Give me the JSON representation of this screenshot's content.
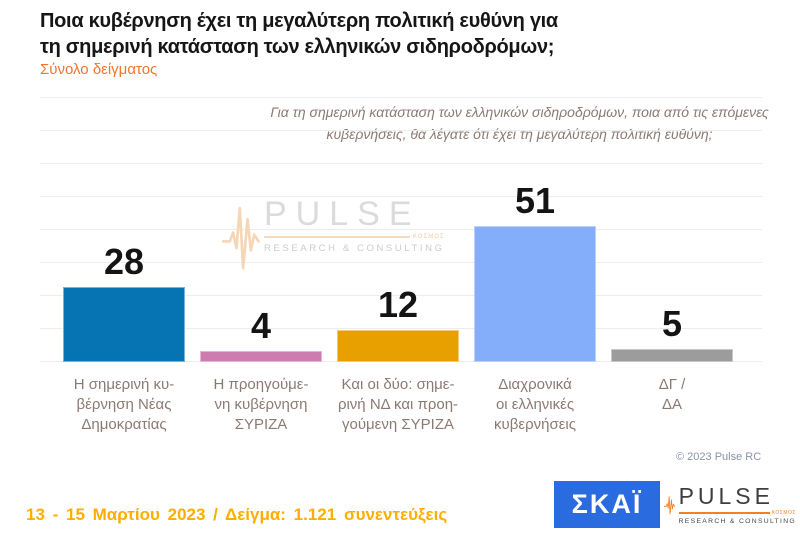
{
  "header": {
    "title": "Ποια κυβέρνηση έχει τη μεγαλύτερη πολιτική ευθύνη για\nτη σημερινή κατάσταση των ελληνικών σιδηροδρόμων;",
    "sample_label": "Σύνολο δείγματος"
  },
  "chart_data": {
    "type": "bar",
    "title": "Ποια κυβέρνηση έχει τη μεγαλύτερη πολιτική ευθύνη για τη σημερινή κατάσταση των ελληνικών σιδηροδρόμων;",
    "subtitle": "Σύνολο δείγματος",
    "question": "Για τη σημερινή κατάσταση των ελληνικών σιδηροδρόμων, ποια από τις επόμενες κυβερνήσεις, θα λέγατε ότι έχει τη μεγαλύτερη πολιτική ευθύνη;",
    "categories": [
      "Η σημερινή κυ-\nβέρνηση Νέας\nΔημοκρατίας",
      "Η προηγούμε-\nνη κυβέρνηση\nΣΥΡΙΖΑ",
      "Και οι δύο: σημε-\nρινή ΝΔ και προη-\nγούμενη ΣΥΡΙΖΑ",
      "Διαχρονικά\nοι ελληνικές\nκυβερνήσεις",
      "ΔΓ /\nΔΑ"
    ],
    "values": [
      28,
      4,
      12,
      51,
      5
    ],
    "bar_colors": [
      "#0673B2",
      "#CC7CAE",
      "#E8A000",
      "#85AEFA",
      "#9C9C9C"
    ],
    "xlabel": "",
    "ylabel": "",
    "ylim": [
      0,
      100
    ],
    "grid": true,
    "legend": "none",
    "value_labels": "above bars"
  },
  "logos": {
    "skai_label": "ΣΚΑΪ",
    "pulse": {
      "name": "PULSE",
      "tagline": "RESEARCH & CONSULTING",
      "small_text": "ΚΟΣΜΟΣ"
    }
  },
  "footer": {
    "copyright": "© 2023 Pulse RC",
    "note": "13 - 15 Μαρτίου 2023 / Δείγμα: 1.121 συνεντεύξεις"
  },
  "colors": {
    "subtitle_orange": "#F2742B",
    "footer_orange": "#FFAD00",
    "skai_blue": "#2B6BE0",
    "label_gray": "#8B7A72",
    "gridline": "#EDEDED"
  }
}
